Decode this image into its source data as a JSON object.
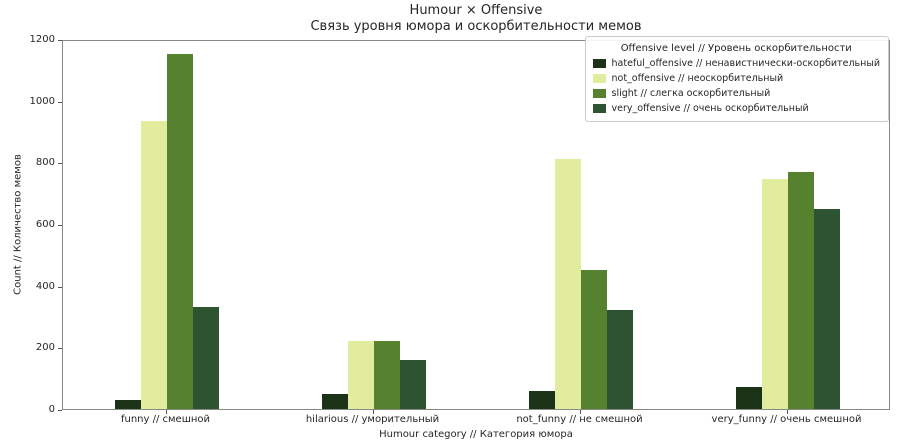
{
  "title": "Humour × Offensive",
  "subtitle": "Связь уровня юмора и оскорбительности мемов",
  "chart_data": {
    "type": "bar",
    "title": "Humour × Offensive",
    "subtitle": "Связь уровня юмора и оскорбительности мемов",
    "xlabel": "Humour category // Категория юмора",
    "ylabel": "Count // Количество мемов",
    "categories": [
      "funny // смешной",
      "hilarious // уморительный",
      "not_funny // не смешной",
      "very_funny // очень смешной"
    ],
    "series": [
      {
        "name": "hateful_offensive // ненавистнически-оскорбительный",
        "color": "#1c3318",
        "values": [
          30,
          50,
          60,
          70
        ]
      },
      {
        "name": "not_offensive // неоскорбительный",
        "color": "#e2ec9e",
        "values": [
          935,
          220,
          810,
          745
        ]
      },
      {
        "name": "slight // слегка оскорбительный",
        "color": "#56812f",
        "values": [
          1150,
          220,
          450,
          770
        ]
      },
      {
        "name": "very_offensive // очень оскорбительный",
        "color": "#2d5331",
        "values": [
          330,
          160,
          320,
          650
        ]
      }
    ],
    "ylim": [
      0,
      1200
    ],
    "yticks": [
      0,
      200,
      400,
      600,
      800,
      1000,
      1200
    ],
    "grid": false,
    "legend_title": "Offensive level // Уровень оскорбительности",
    "legend_position": "upper right",
    "text_color": "#262626",
    "spine_color": "#888888"
  }
}
